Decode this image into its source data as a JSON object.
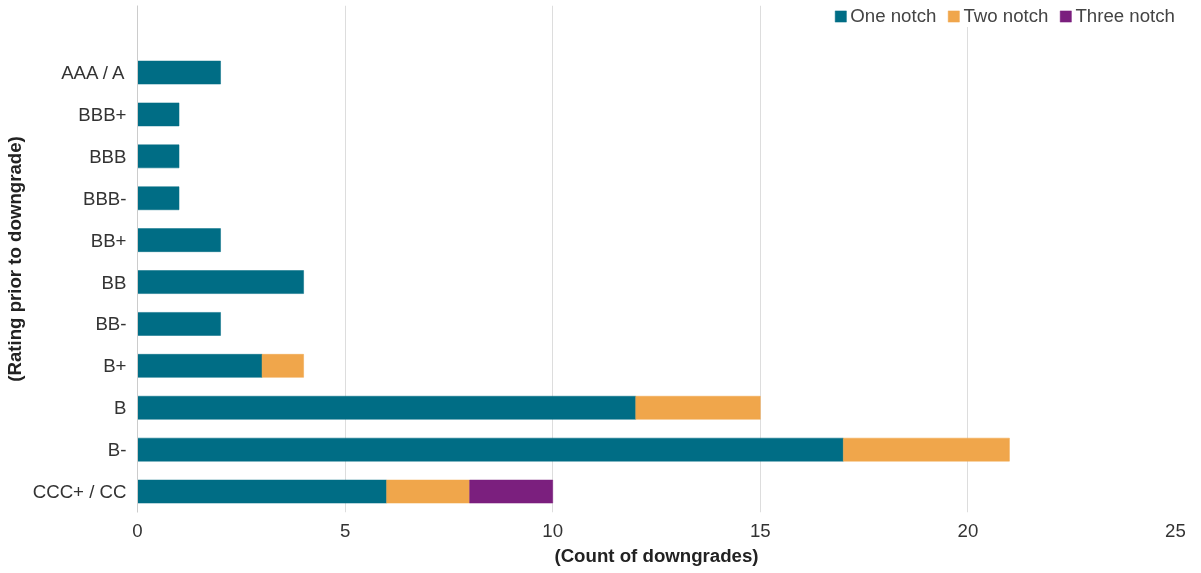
{
  "chart_data": {
    "type": "bar",
    "orientation": "horizontal",
    "stacked": true,
    "xlabel": "(Count of downgrades)",
    "ylabel": "(Rating prior to downgrade)",
    "categories": [
      "AAA / A",
      "BBB+",
      "BBB",
      "BBB-",
      "BB+",
      "BB",
      "BB-",
      "B+",
      "B",
      "B-",
      "CCC+ / CC"
    ],
    "series": [
      {
        "name": "One notch",
        "color": "#006d85",
        "values": [
          2,
          1,
          1,
          1,
          2,
          4,
          2,
          3,
          12,
          17,
          6
        ]
      },
      {
        "name": "Two notch",
        "color": "#f0a64b",
        "values": [
          null,
          null,
          null,
          null,
          null,
          null,
          null,
          1,
          3,
          4,
          2
        ]
      },
      {
        "name": "Three notch",
        "color": "#7b1f7e",
        "values": [
          null,
          null,
          null,
          null,
          null,
          null,
          null,
          null,
          null,
          null,
          2
        ]
      }
    ],
    "xlim": [
      0,
      25
    ],
    "xticks": [
      0,
      5,
      10,
      15,
      20,
      25
    ],
    "grid": "x",
    "legend": "top right"
  }
}
